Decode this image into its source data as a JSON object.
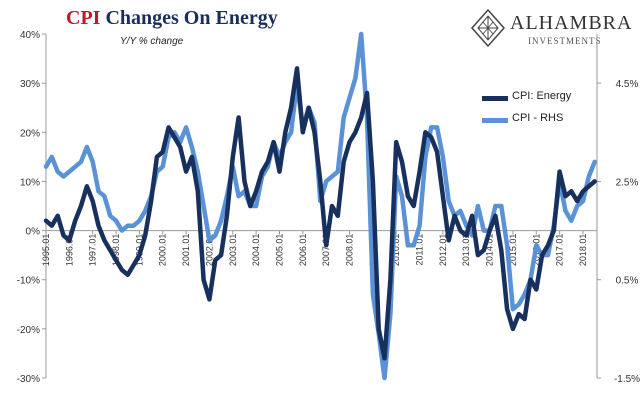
{
  "header": {
    "title_cpi": "CPI",
    "title_rest": "Changes On Energy",
    "subtitle": "Y/Y % change"
  },
  "logo": {
    "name": "ALHAMBRA",
    "sub": "INVESTMENTS"
  },
  "chart_data": {
    "type": "line",
    "title": "CPI Changes On Energy",
    "subtitle": "Y/Y % change",
    "legend": {
      "position": "top-right"
    },
    "grid": false,
    "x_ticks": [
      "1995.01",
      "1996.01",
      "1997.01",
      "1998.01",
      "1999.01",
      "2000.01",
      "2001.01",
      "2002.01",
      "2003.01",
      "2004.01",
      "2005.01",
      "2006.01",
      "2007.01",
      "2008.01",
      "2009.01",
      "2010.01",
      "2011.01",
      "2012.01",
      "2013.01",
      "2014.01",
      "2015.01",
      "2016.01",
      "2017.01",
      "2018.01"
    ],
    "x_range": [
      1995.0,
      2018.6
    ],
    "left_axis": {
      "range": [
        -30,
        40
      ],
      "ticks": [
        -30,
        -20,
        -10,
        0,
        10,
        20,
        30,
        40
      ],
      "tick_labels": [
        "-30%",
        "-20%",
        "-10%",
        "0%",
        "10%",
        "20%",
        "30%",
        "40%"
      ]
    },
    "right_axis": {
      "range": [
        -1.5,
        5.5
      ],
      "ticks": [
        -1.5,
        0.5,
        2.5,
        4.5
      ],
      "tick_labels": [
        "-1.5%",
        "0.5%",
        "2.5%",
        "4.5%"
      ]
    },
    "series": [
      {
        "name": "CPI: Energy",
        "axis": "left",
        "color": "#17305e",
        "x": [
          1995.0,
          1995.25,
          1995.5,
          1995.75,
          1996.0,
          1996.25,
          1996.5,
          1996.75,
          1997.0,
          1997.25,
          1997.5,
          1997.75,
          1998.0,
          1998.25,
          1998.5,
          1998.75,
          1999.0,
          1999.25,
          1999.5,
          1999.75,
          2000.0,
          2000.25,
          2000.5,
          2000.75,
          2001.0,
          2001.25,
          2001.5,
          2001.75,
          2002.0,
          2002.25,
          2002.5,
          2002.75,
          2003.0,
          2003.25,
          2003.5,
          2003.75,
          2004.0,
          2004.25,
          2004.5,
          2004.75,
          2005.0,
          2005.25,
          2005.5,
          2005.75,
          2006.0,
          2006.25,
          2006.5,
          2006.75,
          2007.0,
          2007.25,
          2007.5,
          2007.75,
          2008.0,
          2008.25,
          2008.5,
          2008.75,
          2009.0,
          2009.25,
          2009.5,
          2009.75,
          2010.0,
          2010.25,
          2010.5,
          2010.75,
          2011.0,
          2011.25,
          2011.5,
          2011.75,
          2012.0,
          2012.25,
          2012.5,
          2012.75,
          2013.0,
          2013.25,
          2013.5,
          2013.75,
          2014.0,
          2014.25,
          2014.5,
          2014.75,
          2015.0,
          2015.25,
          2015.5,
          2015.75,
          2016.0,
          2016.25,
          2016.5,
          2016.75,
          2017.0,
          2017.25,
          2017.5,
          2017.75,
          2018.0,
          2018.25,
          2018.5
        ],
        "values": [
          2,
          1,
          3,
          -1,
          -2,
          2,
          5,
          9,
          6,
          1,
          -2,
          -4,
          -6,
          -8,
          -9,
          -7,
          -5,
          -1,
          6,
          15,
          16,
          21,
          19,
          17,
          12,
          15,
          8,
          -10,
          -14,
          -6,
          -5,
          3,
          15,
          23,
          10,
          5,
          8,
          12,
          14,
          18,
          12,
          20,
          25,
          33,
          20,
          25,
          20,
          10,
          -3,
          5,
          3,
          14,
          18,
          20,
          23,
          28,
          10,
          -20,
          -26,
          -10,
          18,
          14,
          7,
          5,
          12,
          20,
          19,
          16,
          7,
          -2,
          3,
          0,
          -1,
          3,
          -5,
          -4,
          0,
          3,
          -4,
          -16,
          -20,
          -17,
          -18,
          -10,
          -12,
          -5,
          -3,
          0,
          12,
          7,
          8,
          6,
          8,
          9,
          10
        ]
      },
      {
        "name": "CPI - RHS",
        "axis": "right",
        "color": "#5b92d6",
        "x": [
          1995.0,
          1995.25,
          1995.5,
          1995.75,
          1996.0,
          1996.25,
          1996.5,
          1996.75,
          1997.0,
          1997.25,
          1997.5,
          1997.75,
          1998.0,
          1998.25,
          1998.5,
          1998.75,
          1999.0,
          1999.25,
          1999.5,
          1999.75,
          2000.0,
          2000.25,
          2000.5,
          2000.75,
          2001.0,
          2001.25,
          2001.5,
          2001.75,
          2002.0,
          2002.25,
          2002.5,
          2002.75,
          2003.0,
          2003.25,
          2003.5,
          2003.75,
          2004.0,
          2004.25,
          2004.5,
          2004.75,
          2005.0,
          2005.25,
          2005.5,
          2005.75,
          2006.0,
          2006.25,
          2006.5,
          2006.75,
          2007.0,
          2007.25,
          2007.5,
          2007.75,
          2008.0,
          2008.25,
          2008.5,
          2008.75,
          2009.0,
          2009.25,
          2009.5,
          2009.75,
          2010.0,
          2010.25,
          2010.5,
          2010.75,
          2011.0,
          2011.25,
          2011.5,
          2011.75,
          2012.0,
          2012.25,
          2012.5,
          2012.75,
          2013.0,
          2013.25,
          2013.5,
          2013.75,
          2014.0,
          2014.25,
          2014.5,
          2014.75,
          2015.0,
          2015.25,
          2015.5,
          2015.75,
          2016.0,
          2016.25,
          2016.5,
          2016.75,
          2017.0,
          2017.25,
          2017.5,
          2017.75,
          2018.0,
          2018.25,
          2018.5
        ],
        "values": [
          2.8,
          3.0,
          2.7,
          2.6,
          2.7,
          2.8,
          2.9,
          3.2,
          2.9,
          2.3,
          2.2,
          1.8,
          1.7,
          1.5,
          1.6,
          1.6,
          1.7,
          1.9,
          2.2,
          2.7,
          2.8,
          3.4,
          3.5,
          3.3,
          3.6,
          3.2,
          2.7,
          2.0,
          1.3,
          1.4,
          1.7,
          2.2,
          2.8,
          2.2,
          2.3,
          2.0,
          2.0,
          2.6,
          2.8,
          3.3,
          3.0,
          3.3,
          3.5,
          4.5,
          3.6,
          4.0,
          3.7,
          2.1,
          2.5,
          2.6,
          2.7,
          3.8,
          4.2,
          4.6,
          5.5,
          3.8,
          0.2,
          -0.6,
          -1.5,
          -0.2,
          2.6,
          2.2,
          1.2,
          1.2,
          1.6,
          3.0,
          3.6,
          3.6,
          3.0,
          2.1,
          1.8,
          1.9,
          1.6,
          1.4,
          2.0,
          1.5,
          1.5,
          2.0,
          2.0,
          1.2,
          -0.1,
          0.0,
          0.2,
          0.5,
          1.2,
          1.0,
          1.0,
          1.6,
          2.5,
          1.9,
          1.7,
          2.0,
          2.1,
          2.6,
          2.9
        ]
      }
    ]
  }
}
